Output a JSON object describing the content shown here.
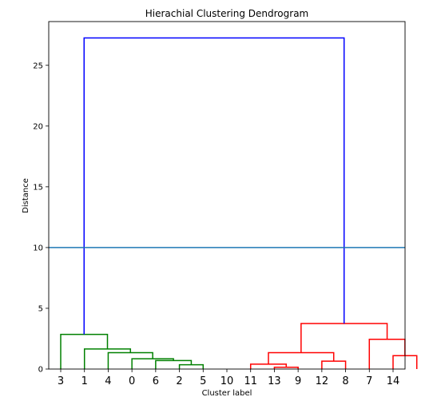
{
  "chart_data": {
    "type": "dendrogram",
    "title": "Hierachial Clustering Dendrogram",
    "xlabel": "Cluster label",
    "ylabel": "Distance",
    "ylim": [
      0,
      28.6
    ],
    "yticks": [
      0,
      5,
      10,
      15,
      20,
      25
    ],
    "leaf_order": [
      "3",
      "1",
      "4",
      "0",
      "6",
      "2",
      "5",
      "10",
      "11",
      "13",
      "9",
      "12",
      "8",
      "7",
      "14"
    ],
    "threshold_line": {
      "y": 10,
      "color": "#1f77b4"
    },
    "links": [
      {
        "left_x": 4.5,
        "right_x": 5.5,
        "left_y": 0,
        "right_y": 0,
        "height": 0.35,
        "color": "#008000"
      },
      {
        "left_x": 3.5,
        "right_x": 5.0,
        "left_y": 0,
        "right_y": 0.35,
        "height": 0.7,
        "color": "#008000"
      },
      {
        "left_x": 2.5,
        "right_x": 4.25,
        "left_y": 0,
        "right_y": 0.7,
        "height": 0.85,
        "color": "#008000"
      },
      {
        "left_x": 1.5,
        "right_x": 3.375,
        "left_y": 0,
        "right_y": 0.85,
        "height": 1.35,
        "color": "#008000"
      },
      {
        "left_x": 0.5,
        "right_x": 2.4375,
        "left_y": 0,
        "right_y": 1.35,
        "height": 1.65,
        "color": "#008000"
      },
      {
        "left_x": -0.5,
        "right_x": 1.46875,
        "left_y": 0,
        "right_y": 1.65,
        "height": 2.85,
        "color": "#008000"
      },
      {
        "left_x": 8.5,
        "right_x": 9.5,
        "left_y": 0,
        "right_y": 0,
        "height": 0.15,
        "color": "#ff0000"
      },
      {
        "left_x": 7.5,
        "right_x": 9.0,
        "left_y": 0,
        "right_y": 0.15,
        "height": 0.4,
        "color": "#ff0000"
      },
      {
        "left_x": 10.5,
        "right_x": 11.5,
        "left_y": 0,
        "right_y": 0,
        "height": 0.65,
        "color": "#ff0000"
      },
      {
        "left_x": 8.25,
        "right_x": 11.0,
        "left_y": 0.4,
        "right_y": 0.65,
        "height": 1.35,
        "color": "#ff0000"
      },
      {
        "left_x": 13.5,
        "right_x": 14.5,
        "left_y": 0,
        "right_y": 0,
        "height": 1.1,
        "color": "#ff0000"
      },
      {
        "left_x": 12.5,
        "right_x": 14.0,
        "left_y": 0,
        "right_y": 1.1,
        "height": 2.45,
        "color": "#ff0000"
      },
      {
        "left_x": 9.625,
        "right_x": 13.25,
        "left_y": 1.35,
        "right_y": 2.45,
        "height": 3.75,
        "color": "#ff0000"
      },
      {
        "left_x": 0.484375,
        "right_x": 11.4375,
        "left_y": 2.85,
        "right_y": 3.75,
        "height": 27.25,
        "color": "#0000ff"
      }
    ]
  }
}
